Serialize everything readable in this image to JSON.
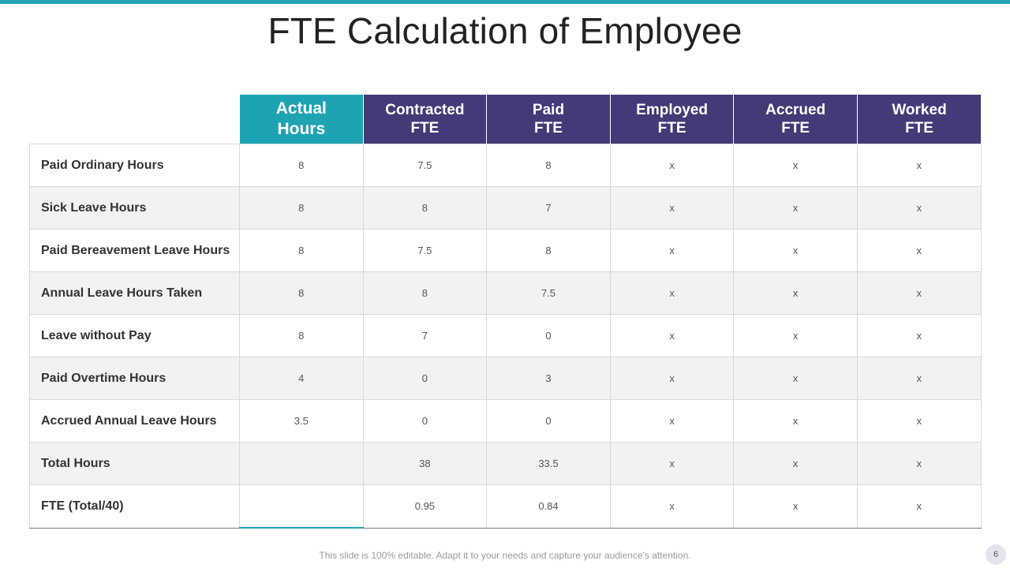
{
  "slide": {
    "title": "FTE Calculation of Employee",
    "footer": "This slide is 100% editable. Adapt it to your needs and capture your audience's attention.",
    "page_number": "6"
  },
  "colors": {
    "accent_teal": "#1ea3b3",
    "header_purple": "#433a77"
  },
  "table": {
    "headers": [
      {
        "line1": "Actual",
        "line2": "Hours"
      },
      {
        "line1": "Contracted",
        "line2": "FTE"
      },
      {
        "line1": "Paid",
        "line2": "FTE"
      },
      {
        "line1": "Employed",
        "line2": "FTE"
      },
      {
        "line1": "Accrued",
        "line2": "FTE"
      },
      {
        "line1": "Worked",
        "line2": "FTE"
      }
    ],
    "rows": [
      {
        "label": "Paid Ordinary Hours",
        "cells": [
          "8",
          "7.5",
          "8",
          "x",
          "x",
          "x"
        ]
      },
      {
        "label": "Sick Leave Hours",
        "cells": [
          "8",
          "8",
          "7",
          "x",
          "x",
          "x"
        ]
      },
      {
        "label": "Paid Bereavement Leave Hours",
        "cells": [
          "8",
          "7.5",
          "8",
          "x",
          "x",
          "x"
        ]
      },
      {
        "label": "Annual Leave Hours Taken",
        "cells": [
          "8",
          "8",
          "7.5",
          "x",
          "x",
          "x"
        ]
      },
      {
        "label": "Leave without Pay",
        "cells": [
          "8",
          "7",
          "0",
          "x",
          "x",
          "x"
        ]
      },
      {
        "label": "Paid Overtime Hours",
        "cells": [
          "4",
          "0",
          "3",
          "x",
          "x",
          "x"
        ]
      },
      {
        "label": "Accrued Annual Leave Hours",
        "cells": [
          "3.5",
          "0",
          "0",
          "x",
          "x",
          "x"
        ]
      },
      {
        "label": "Total Hours",
        "cells": [
          "",
          "38",
          "33.5",
          "x",
          "x",
          "x"
        ]
      },
      {
        "label": "FTE (Total/40)",
        "cells": [
          "",
          "0.95",
          "0.84",
          "x",
          "x",
          "x"
        ]
      }
    ]
  }
}
